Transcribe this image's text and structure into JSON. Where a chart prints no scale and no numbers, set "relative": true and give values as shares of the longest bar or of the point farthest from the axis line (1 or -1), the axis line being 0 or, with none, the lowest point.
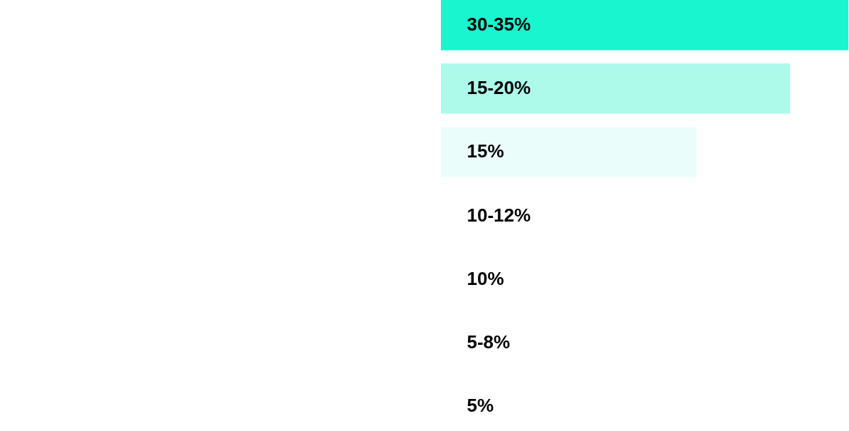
{
  "chart_data": {
    "type": "bar",
    "orientation": "horizontal",
    "relative": true,
    "categories": [
      "30-35%",
      "15-20%",
      "15%",
      "10-12%",
      "10%",
      "5-8%",
      "5%"
    ],
    "values": [
      1,
      0.857,
      0.628,
      null,
      null,
      null,
      null
    ],
    "colors": [
      "#19f5cf",
      "#adfaeb",
      "#eafdfa",
      "#ffffff",
      "#ffffff",
      "#ffffff",
      "#ffffff"
    ]
  }
}
